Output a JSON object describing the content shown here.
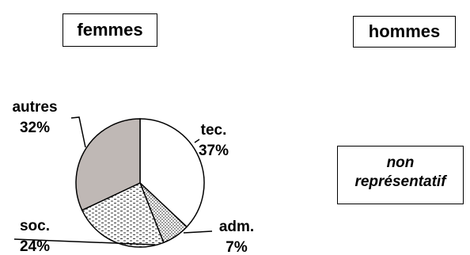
{
  "titles": {
    "left": "femmes",
    "right": "hommes"
  },
  "note": {
    "line1": "non",
    "line2": "représentatif"
  },
  "chart_data": {
    "type": "pie",
    "title": "femmes",
    "slices": [
      {
        "label": "tec.",
        "value": 37,
        "value_label": "37%",
        "fill": "white"
      },
      {
        "label": "adm.",
        "value": 7,
        "value_label": "7%",
        "fill": "dots"
      },
      {
        "label": "soc.",
        "value": 24,
        "value_label": "24%",
        "fill": "dashes"
      },
      {
        "label": "autres",
        "value": 32,
        "value_label": "32%",
        "fill": "#bfb8b5"
      }
    ]
  }
}
